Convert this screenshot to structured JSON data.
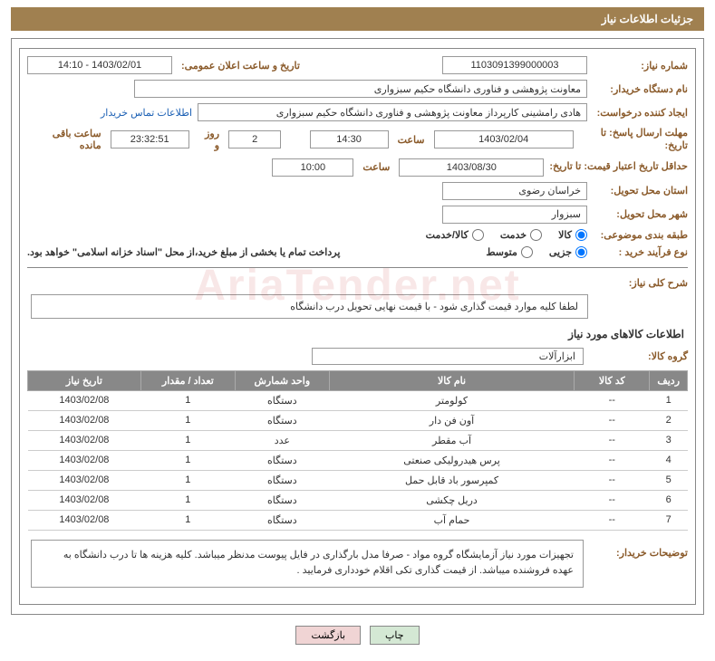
{
  "header": {
    "title": "جزئیات اطلاعات نیاز"
  },
  "colors": {
    "header_bg": "#a08050",
    "label_color": "#8a5a2a",
    "th_bg": "#888888",
    "btn_print_bg": "#d4e8d4",
    "btn_back_bg": "#f0d4d4"
  },
  "fields": {
    "need_number_label": "شماره نیاز:",
    "need_number": "1103091399000003",
    "announce_datetime_label": "تاریخ و ساعت اعلان عمومی:",
    "announce_datetime": "1403/02/01 - 14:10",
    "buyer_label": "نام دستگاه خریدار:",
    "buyer": "معاونت پژوهشی و فناوری دانشگاه حکیم سبزواری",
    "requester_label": "ایجاد کننده درخواست:",
    "requester": "هادی رامشینی کارپرداز معاونت پژوهشی و فناوری دانشگاه حکیم سبزواری",
    "buyer_contact_link": "اطلاعات تماس خریدار",
    "deadline_label": "مهلت ارسال پاسخ: تا تاریخ:",
    "deadline_date": "1403/02/04",
    "time_word": "ساعت",
    "deadline_time": "14:30",
    "remaining_days": "2",
    "day_and": "روز و",
    "remaining_time": "23:32:51",
    "remaining_suffix": "ساعت باقی مانده",
    "validity_label": "حداقل تاریخ اعتبار قیمت: تا تاریخ:",
    "validity_date": "1403/08/30",
    "validity_time": "10:00",
    "delivery_province_label": "استان محل تحویل:",
    "delivery_province": "خراسان رضوی",
    "delivery_city_label": "شهر محل تحویل:",
    "delivery_city": "سبزوار",
    "category_label": "طبقه بندی موضوعی:",
    "cat_goods": "کالا",
    "cat_service": "خدمت",
    "cat_goods_service": "کالا/خدمت",
    "purchase_type_label": "نوع فرآیند خرید :",
    "pt_small": "جزیی",
    "pt_medium": "متوسط",
    "payment_note": "پرداخت تمام یا بخشی از مبلغ خرید،از محل \"اسناد خزانه اسلامی\" خواهد بود.",
    "general_desc_label": "شرح کلی نیاز:",
    "general_desc": "لطفا کلیه موارد قیمت گذاری شود - با قیمت نهایی تحویل درب دانشگاه",
    "goods_info_title": "اطلاعات کالاهای مورد نیاز",
    "goods_group_label": "گروه کالا:",
    "goods_group": "ابزارآلات",
    "buyer_notes_label": "توضیحات خریدار:",
    "buyer_notes": "تجهیزات مورد نیاز آزمایشگاه گروه مواد - صرفا مدل بارگذاری در فایل پیوست مدنظر میباشد. کلیه هزینه ها تا درب دانشگاه به عهده فروشنده میباشد. از قیمت گذاری تکی اقلام خودداری فرمایید ."
  },
  "table": {
    "headers": {
      "idx": "ردیف",
      "code": "کد کالا",
      "name": "نام کالا",
      "unit": "واحد شمارش",
      "qty": "تعداد / مقدار",
      "date": "تاریخ نیاز"
    },
    "rows": [
      {
        "idx": "1",
        "code": "--",
        "name": "کولومتر",
        "unit": "دستگاه",
        "qty": "1",
        "date": "1403/02/08"
      },
      {
        "idx": "2",
        "code": "--",
        "name": "آون فن دار",
        "unit": "دستگاه",
        "qty": "1",
        "date": "1403/02/08"
      },
      {
        "idx": "3",
        "code": "--",
        "name": "آب مقطر",
        "unit": "عدد",
        "qty": "1",
        "date": "1403/02/08"
      },
      {
        "idx": "4",
        "code": "--",
        "name": "پرس هیدرولیکی صنعتی",
        "unit": "دستگاه",
        "qty": "1",
        "date": "1403/02/08"
      },
      {
        "idx": "5",
        "code": "--",
        "name": "کمپرسور باد قابل حمل",
        "unit": "دستگاه",
        "qty": "1",
        "date": "1403/02/08"
      },
      {
        "idx": "6",
        "code": "--",
        "name": "دریل چکشی",
        "unit": "دستگاه",
        "qty": "1",
        "date": "1403/02/08"
      },
      {
        "idx": "7",
        "code": "--",
        "name": "حمام آب",
        "unit": "دستگاه",
        "qty": "1",
        "date": "1403/02/08"
      }
    ]
  },
  "buttons": {
    "print": "چاپ",
    "back": "بازگشت"
  },
  "watermark": "AriaTender.net"
}
